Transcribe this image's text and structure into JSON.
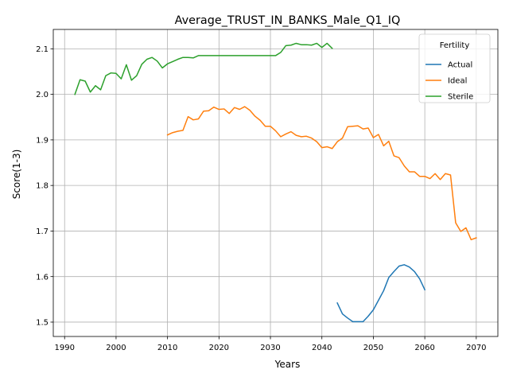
{
  "chart_data": {
    "type": "line",
    "title": "Average_TRUST_IN_BANKS_Male_Q1_IQ",
    "xlabel": "Years",
    "ylabel": "Score(1-3)",
    "xlim": [
      1987.8,
      2074.2
    ],
    "ylim": [
      1.4685,
      2.1425
    ],
    "xticks": [
      1990,
      2000,
      2010,
      2020,
      2030,
      2040,
      2050,
      2060,
      2070
    ],
    "xtick_labels": [
      "1990",
      "2000",
      "2010",
      "2020",
      "2030",
      "2040",
      "2050",
      "2060",
      "2070"
    ],
    "yticks": [
      1.5,
      1.6,
      1.7,
      1.8,
      1.9,
      2.0,
      2.1
    ],
    "ytick_labels": [
      "1.5",
      "1.6",
      "1.7",
      "1.8",
      "1.9",
      "2.0",
      "2.1"
    ],
    "grid": true,
    "legend": {
      "title": "Fertility",
      "position": "top-right"
    },
    "series": [
      {
        "name": "Actual",
        "color": "#1f77b4",
        "x": [
          2043,
          2044,
          2045,
          2046,
          2047,
          2048,
          2049,
          2050,
          2051,
          2052,
          2053,
          2054,
          2055,
          2056,
          2057,
          2058,
          2059,
          2060
        ],
        "y": [
          1.542,
          1.518,
          1.509,
          1.501,
          1.501,
          1.501,
          1.513,
          1.527,
          1.548,
          1.569,
          1.598,
          1.611,
          1.623,
          1.626,
          1.621,
          1.611,
          1.595,
          1.571
        ]
      },
      {
        "name": "Ideal",
        "color": "#ff7f0e",
        "x": [
          2010,
          2011,
          2012,
          2013,
          2014,
          2015,
          2016,
          2017,
          2018,
          2019,
          2020,
          2021,
          2022,
          2023,
          2024,
          2025,
          2026,
          2027,
          2028,
          2029,
          2030,
          2031,
          2032,
          2033,
          2034,
          2035,
          2036,
          2037,
          2038,
          2039,
          2040,
          2041,
          2042,
          2043,
          2044,
          2045,
          2046,
          2047,
          2048,
          2049,
          2050,
          2051,
          2052,
          2053,
          2054,
          2055,
          2056,
          2057,
          2058,
          2059,
          2060,
          2061,
          2062,
          2063,
          2064,
          2065,
          2066,
          2067,
          2068,
          2069,
          2070
        ],
        "y": [
          1.911,
          1.916,
          1.919,
          1.921,
          1.951,
          1.944,
          1.946,
          1.963,
          1.964,
          1.972,
          1.967,
          1.968,
          1.958,
          1.971,
          1.967,
          1.973,
          1.965,
          1.952,
          1.943,
          1.93,
          1.93,
          1.92,
          1.907,
          1.913,
          1.918,
          1.91,
          1.907,
          1.908,
          1.904,
          1.896,
          1.883,
          1.885,
          1.881,
          1.896,
          1.904,
          1.929,
          1.93,
          1.931,
          1.924,
          1.926,
          1.905,
          1.912,
          1.887,
          1.897,
          1.865,
          1.861,
          1.843,
          1.83,
          1.83,
          1.82,
          1.82,
          1.815,
          1.826,
          1.813,
          1.826,
          1.823,
          1.718,
          1.699,
          1.707,
          1.681,
          1.685
        ]
      },
      {
        "name": "Sterile",
        "color": "#2ca02c",
        "x": [
          1992,
          1993,
          1994,
          1995,
          1996,
          1997,
          1998,
          1999,
          2000,
          2001,
          2002,
          2003,
          2004,
          2005,
          2006,
          2007,
          2008,
          2009,
          2010,
          2011,
          2012,
          2013,
          2014,
          2015,
          2016,
          2017,
          2018,
          2019,
          2020,
          2021,
          2022,
          2023,
          2024,
          2025,
          2026,
          2027,
          2028,
          2029,
          2030,
          2031,
          2032,
          2033,
          2034,
          2035,
          2036,
          2037,
          2038,
          2039,
          2040,
          2041,
          2042
        ],
        "y": [
          2.0,
          2.032,
          2.029,
          2.005,
          2.019,
          2.01,
          2.041,
          2.047,
          2.046,
          2.034,
          2.065,
          2.031,
          2.041,
          2.066,
          2.077,
          2.081,
          2.073,
          2.058,
          2.067,
          2.072,
          2.077,
          2.081,
          2.081,
          2.08,
          2.085,
          2.085,
          2.085,
          2.085,
          2.085,
          2.085,
          2.085,
          2.085,
          2.085,
          2.085,
          2.085,
          2.085,
          2.085,
          2.085,
          2.085,
          2.085,
          2.092,
          2.107,
          2.108,
          2.112,
          2.109,
          2.109,
          2.108,
          2.112,
          2.103,
          2.112,
          2.101
        ]
      }
    ]
  }
}
